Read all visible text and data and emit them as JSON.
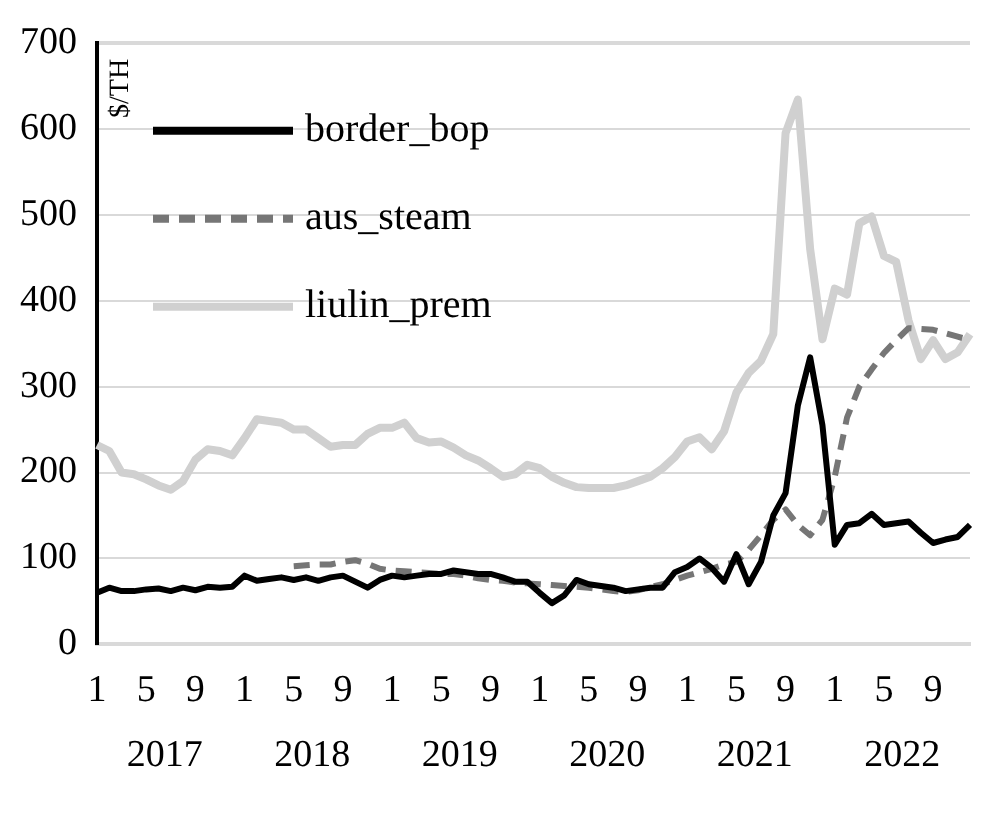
{
  "chart_data": {
    "type": "line",
    "ylabel": "$/TH",
    "legend": "top left",
    "grid": "y",
    "marker": "none",
    "categories": [
      "1",
      null,
      null,
      null,
      "5",
      null,
      null,
      null,
      "9",
      null,
      null,
      null,
      "1",
      null,
      null,
      null,
      "5",
      null,
      null,
      null,
      "9",
      null,
      null,
      null,
      "1",
      null,
      null,
      null,
      "5",
      null,
      null,
      null,
      "9",
      null,
      null,
      null,
      "1",
      null,
      null,
      null,
      "5",
      null,
      null,
      null,
      "9",
      null,
      null,
      null,
      "1",
      null,
      null,
      null,
      "5",
      null,
      null,
      null,
      "9",
      null,
      null,
      null,
      "1",
      null,
      null,
      null,
      "5",
      null,
      null,
      null,
      "9",
      null,
      null,
      null
    ],
    "annotations": [
      "2017",
      "2018",
      "2019",
      "2020",
      "2021",
      "2022"
    ],
    "ylim": [
      0,
      700
    ],
    "yticks": [
      0,
      100,
      200,
      300,
      400,
      500,
      600,
      700
    ],
    "series": [
      {
        "name": "border_bop",
        "color": "#000000",
        "line_style": "solid",
        "values": [
          60,
          66,
          62,
          62,
          64,
          65,
          62,
          66,
          63,
          67,
          66,
          67,
          80,
          74,
          76,
          78,
          75,
          78,
          74,
          78,
          80,
          73,
          66,
          75,
          80,
          78,
          80,
          82,
          82,
          86,
          84,
          82,
          82,
          78,
          73,
          73,
          60,
          48,
          57,
          75,
          70,
          68,
          66,
          62,
          64,
          66,
          66,
          84,
          90,
          100,
          89,
          73,
          105,
          70,
          96,
          150,
          176,
          278,
          334,
          255,
          116,
          139,
          141,
          152,
          139,
          141,
          143,
          130,
          118,
          122,
          125,
          139
        ]
      },
      {
        "name": "aus_steam",
        "color": "#767676",
        "line_style": "dashed",
        "values": [
          null,
          null,
          null,
          null,
          null,
          null,
          null,
          null,
          null,
          null,
          null,
          null,
          null,
          null,
          null,
          null,
          91,
          92,
          93,
          93,
          96,
          98,
          94,
          88,
          86,
          85,
          84,
          83,
          82,
          82,
          80,
          77,
          75,
          74,
          72,
          71,
          70,
          69,
          68,
          67,
          66,
          64,
          62,
          61,
          63,
          67,
          70,
          75,
          80,
          84,
          88,
          93,
          96,
          110,
          127,
          145,
          157,
          139,
          127,
          145,
          195,
          264,
          300,
          320,
          339,
          354,
          368,
          367,
          366,
          362,
          358,
          354
        ]
      },
      {
        "name": "liulin_prem",
        "color": "#d0d0d0",
        "line_style": "solid",
        "values": [
          232,
          225,
          200,
          198,
          192,
          185,
          180,
          190,
          215,
          227,
          225,
          220,
          240,
          262,
          260,
          258,
          250,
          250,
          240,
          230,
          232,
          232,
          245,
          252,
          252,
          258,
          240,
          235,
          236,
          229,
          220,
          214,
          205,
          195,
          198,
          209,
          205,
          195,
          188,
          183,
          182,
          182,
          182,
          185,
          190,
          195,
          205,
          218,
          236,
          241,
          227,
          248,
          293,
          316,
          330,
          361,
          595,
          634,
          460,
          355,
          414,
          407,
          490,
          498,
          452,
          445,
          377,
          332,
          354,
          332,
          340,
          361
        ]
      }
    ]
  }
}
